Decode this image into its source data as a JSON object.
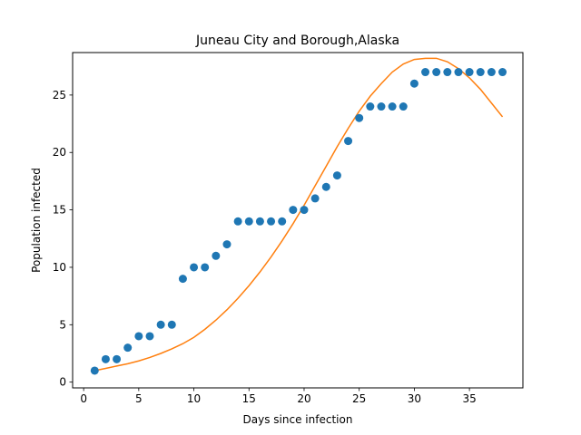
{
  "chart_data": {
    "type": "scatter",
    "title": "Juneau City and Borough,Alaska",
    "xlabel": "Days since infection",
    "ylabel": "Population infected",
    "xlim": [
      -1,
      39.85
    ],
    "ylim": [
      -0.5,
      28.7
    ],
    "xticks": [
      0,
      5,
      10,
      15,
      20,
      25,
      30,
      35
    ],
    "yticks": [
      0,
      5,
      10,
      15,
      20,
      25
    ],
    "grid": false,
    "series": [
      {
        "kind": "scatter",
        "color": "#1f77b4",
        "x": [
          1,
          2,
          3,
          4,
          5,
          6,
          7,
          8,
          9,
          10,
          11,
          12,
          13,
          14,
          15,
          16,
          17,
          18,
          19,
          20,
          21,
          22,
          23,
          24,
          25,
          26,
          27,
          28,
          29,
          30,
          31,
          32,
          33,
          34,
          35,
          36,
          37,
          38
        ],
        "y": [
          1,
          2,
          2,
          3,
          4,
          4,
          5,
          5,
          9,
          10,
          10,
          11,
          12,
          14,
          14,
          14,
          14,
          14,
          15,
          15,
          16,
          17,
          18,
          21,
          23,
          24,
          24,
          24,
          24,
          26,
          27,
          27,
          27,
          27,
          27,
          27,
          27,
          27
        ]
      },
      {
        "kind": "line",
        "color": "#ff7f0e",
        "x": [
          1,
          2,
          3,
          4,
          5,
          6,
          7,
          8,
          9,
          10,
          11,
          12,
          13,
          14,
          15,
          16,
          17,
          18,
          19,
          20,
          21,
          22,
          23,
          24,
          25,
          26,
          27,
          28,
          29,
          30,
          31,
          32,
          33,
          34,
          35,
          36,
          37,
          38
        ],
        "y": [
          1.0,
          1.2,
          1.4,
          1.6,
          1.85,
          2.15,
          2.5,
          2.9,
          3.35,
          3.9,
          4.6,
          5.4,
          6.3,
          7.3,
          8.4,
          9.6,
          10.9,
          12.3,
          13.8,
          15.4,
          17.1,
          18.8,
          20.5,
          22.1,
          23.6,
          24.9,
          26.0,
          27.0,
          27.7,
          28.1,
          28.2,
          28.2,
          27.9,
          27.3,
          26.5,
          25.5,
          24.3,
          23.1
        ]
      }
    ]
  }
}
